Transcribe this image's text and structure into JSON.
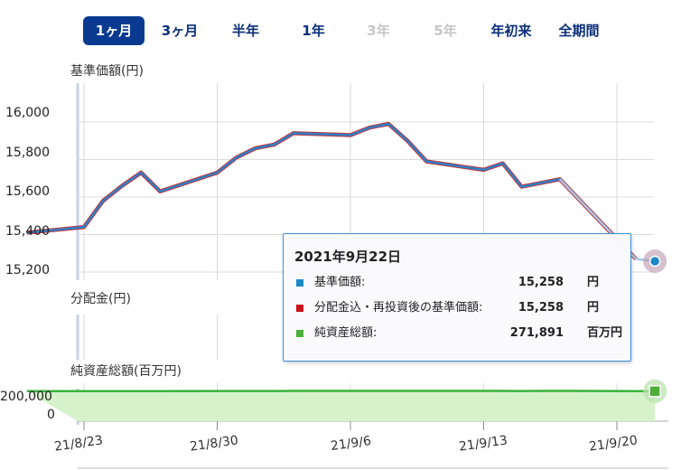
{
  "tabs": [
    {
      "label": "1ヶ月",
      "state": "active"
    },
    {
      "label": "3ヶ月",
      "state": "normal"
    },
    {
      "label": "半年",
      "state": "normal"
    },
    {
      "label": "1年",
      "state": "normal"
    },
    {
      "label": "3年",
      "state": "disabled"
    },
    {
      "label": "5年",
      "state": "disabled"
    },
    {
      "label": "年初来",
      "state": "normal"
    },
    {
      "label": "全期間",
      "state": "normal"
    }
  ],
  "colors": {
    "tab_active_bg": "#0a3a90",
    "tab_text": "#0a2f7a",
    "tab_disabled": "#c6c6c6",
    "nav_line": "#2f7fc6",
    "nav_line_outline": "#c0363c",
    "net_assets_line": "#3ab23a",
    "net_assets_fill": "#d6f2cb",
    "tooltip_border": "#3e8fd6",
    "swatch_nav": "#1f88c6",
    "swatch_reinvest": "#c8141e",
    "swatch_assets": "#4caf38"
  },
  "chart_data": {
    "type": "line",
    "panels": [
      {
        "title": "基準価額(円)",
        "ylim": [
          15180,
          16120
        ],
        "yticks": [
          "16,000",
          "15,800",
          "15,600",
          "15,400",
          "15,200"
        ],
        "ytick_values": [
          16000,
          15800,
          15600,
          15400,
          15200
        ]
      },
      {
        "title": "分配金(円)"
      },
      {
        "title": "純資産総額(百万円)",
        "yticks": [
          "200,000",
          "0"
        ],
        "ytick_values": [
          200000,
          0
        ]
      }
    ],
    "xticks": [
      "21/8/23",
      "21/8/30",
      "21/9/6",
      "21/9/13",
      "21/9/20"
    ],
    "xtick_dates": [
      "2021-08-23",
      "2021-08-30",
      "2021-09-06",
      "2021-09-13",
      "2021-09-20"
    ],
    "x": [
      "2021-08-20",
      "2021-08-23",
      "2021-08-24",
      "2021-08-25",
      "2021-08-26",
      "2021-08-27",
      "2021-08-30",
      "2021-08-31",
      "2021-09-01",
      "2021-09-02",
      "2021-09-03",
      "2021-09-06",
      "2021-09-07",
      "2021-09-08",
      "2021-09-09",
      "2021-09-10",
      "2021-09-13",
      "2021-09-14",
      "2021-09-15",
      "2021-09-16",
      "2021-09-17",
      "2021-09-21",
      "2021-09-22"
    ],
    "series": [
      {
        "name": "基準価額",
        "values": [
          15410,
          15440,
          15580,
          15660,
          15730,
          15630,
          15730,
          15810,
          15860,
          15880,
          15940,
          15930,
          15970,
          15990,
          15900,
          15790,
          15745,
          15780,
          15655,
          15675,
          15695,
          15270,
          15258
        ]
      },
      {
        "name": "純資産総額",
        "values": [
          272000,
          272400,
          272800,
          273200,
          273400,
          273000,
          273500,
          273900,
          274200,
          274400,
          275000,
          275100,
          275300,
          275400,
          275200,
          274800,
          274600,
          274900,
          274500,
          274700,
          274800,
          272200,
          271891
        ]
      }
    ]
  },
  "tooltip": {
    "date": "2021年9月22日",
    "rows": [
      {
        "label": "基準価額:",
        "value": "15,258",
        "unit": "円",
        "swatch": "#1f88c6"
      },
      {
        "label": "分配金込・再投資後の基準価額:",
        "value": "15,258",
        "unit": "円",
        "swatch": "#c8141e"
      },
      {
        "label": "純資産総額:",
        "value": "271,891",
        "unit": "百万円",
        "swatch": "#4caf38"
      }
    ]
  }
}
